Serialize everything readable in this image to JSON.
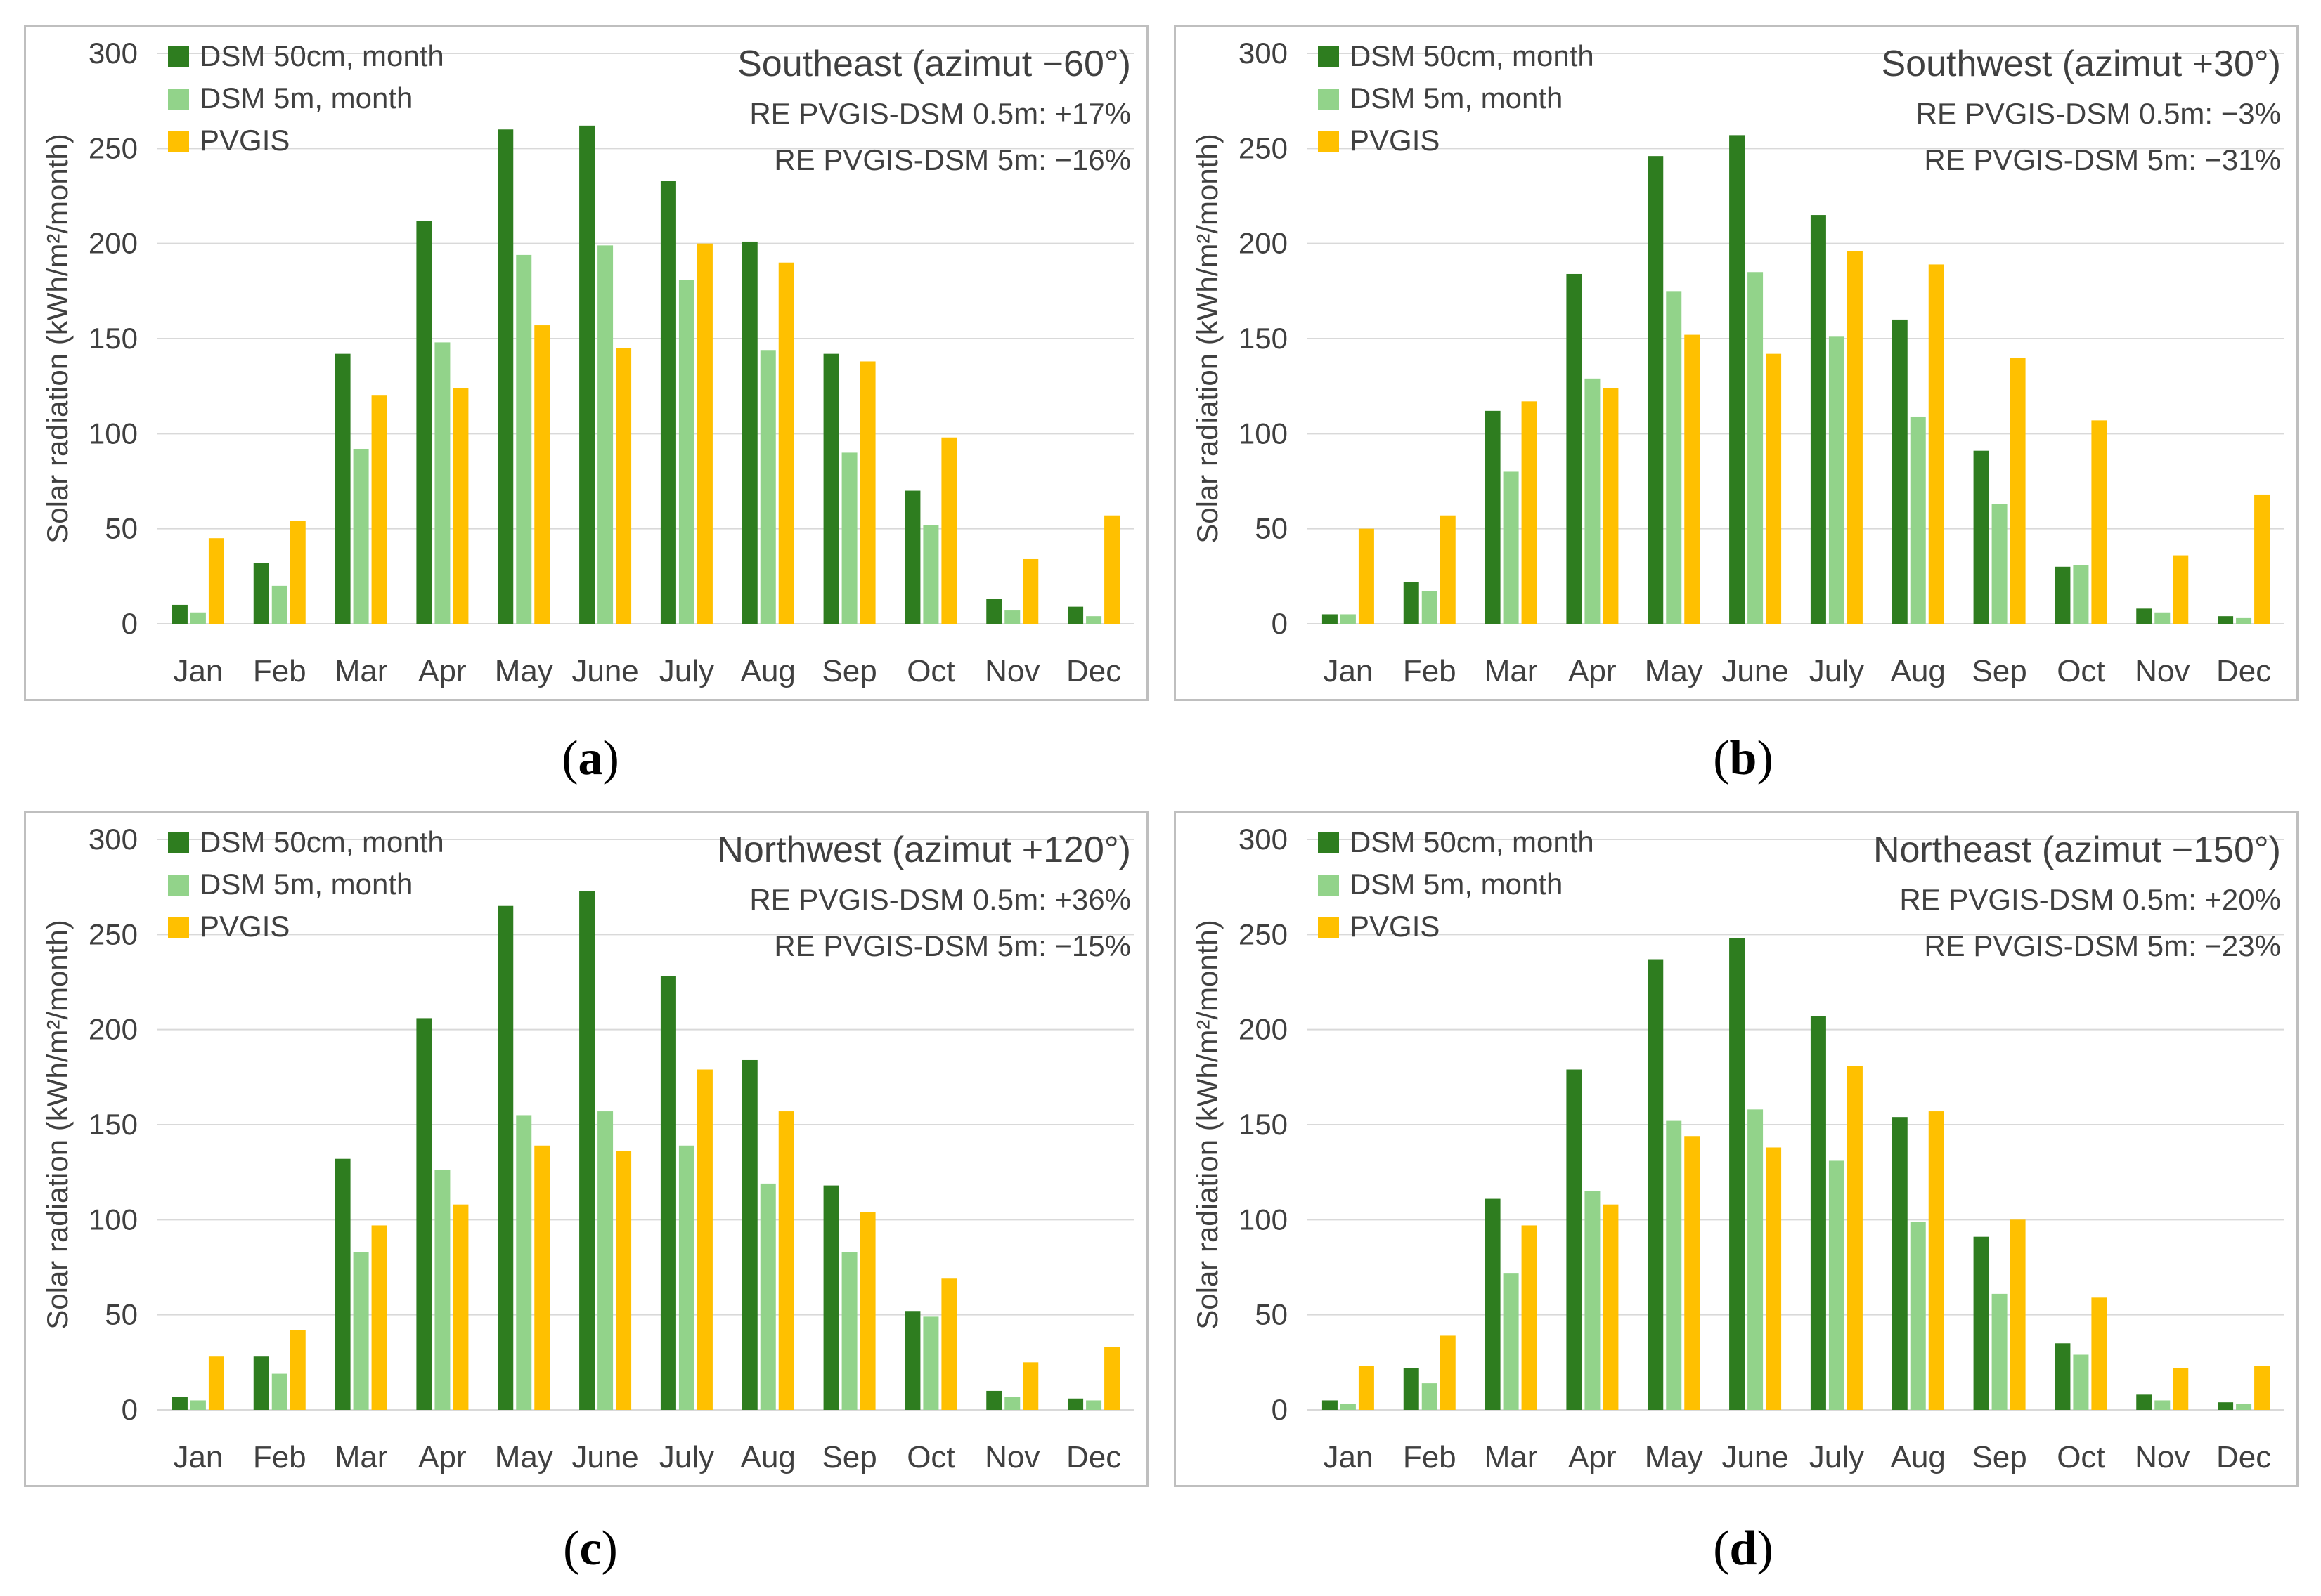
{
  "legend_labels": [
    "DSM 50cm, month",
    "DSM 5m, month",
    "PVGIS"
  ],
  "colors": {
    "dsm50": "#2e7d1f",
    "dsm5": "#92d38a",
    "pvgis": "#ffc000",
    "grid": "#d9d9d9",
    "frame": "#bfbfbf",
    "text": "#404040"
  },
  "chart_data": [
    {
      "type": "bar",
      "panel_label": "a",
      "title": "Southeast (azimut −60°)",
      "annotations": [
        "RE PVGIS-DSM 0.5m: +17%",
        "RE PVGIS-DSM 5m: −16%"
      ],
      "ylabel": "Solar radiation (kWh/m²/month)",
      "ylim": [
        0,
        300
      ],
      "yticks": [
        0,
        50,
        100,
        150,
        200,
        250,
        300
      ],
      "categories": [
        "Jan",
        "Feb",
        "Mar",
        "Apr",
        "May",
        "June",
        "July",
        "Aug",
        "Sep",
        "Oct",
        "Nov",
        "Dec"
      ],
      "series": [
        {
          "name": "DSM 50cm, month",
          "values": [
            10,
            32,
            142,
            212,
            260,
            262,
            233,
            201,
            142,
            70,
            13,
            9
          ]
        },
        {
          "name": "DSM 5m, month",
          "values": [
            6,
            20,
            92,
            148,
            194,
            199,
            181,
            144,
            90,
            52,
            7,
            4
          ]
        },
        {
          "name": "PVGIS",
          "values": [
            45,
            54,
            120,
            124,
            157,
            145,
            200,
            190,
            138,
            98,
            34,
            57
          ]
        }
      ]
    },
    {
      "type": "bar",
      "panel_label": "b",
      "title": "Southwest (azimut +30°)",
      "annotations": [
        "RE PVGIS-DSM 0.5m: −3%",
        "RE PVGIS-DSM 5m: −31%"
      ],
      "ylabel": "Solar radiation (kWh/m²/month)",
      "ylim": [
        0,
        300
      ],
      "yticks": [
        0,
        50,
        100,
        150,
        200,
        250,
        300
      ],
      "categories": [
        "Jan",
        "Feb",
        "Mar",
        "Apr",
        "May",
        "June",
        "July",
        "Aug",
        "Sep",
        "Oct",
        "Nov",
        "Dec"
      ],
      "series": [
        {
          "name": "DSM 50cm, month",
          "values": [
            5,
            22,
            112,
            184,
            246,
            257,
            215,
            160,
            91,
            30,
            8,
            4
          ]
        },
        {
          "name": "DSM 5m, month",
          "values": [
            5,
            17,
            80,
            129,
            175,
            185,
            151,
            109,
            63,
            31,
            6,
            3
          ]
        },
        {
          "name": "PVGIS",
          "values": [
            50,
            57,
            117,
            124,
            152,
            142,
            196,
            189,
            140,
            107,
            36,
            68
          ]
        }
      ]
    },
    {
      "type": "bar",
      "panel_label": "c",
      "title": "Northwest (azimut +120°)",
      "annotations": [
        "RE PVGIS-DSM 0.5m: +36%",
        "RE PVGIS-DSM 5m: −15%"
      ],
      "ylabel": "Solar radiation (kWh/m²/month)",
      "ylim": [
        0,
        300
      ],
      "yticks": [
        0,
        50,
        100,
        150,
        200,
        250,
        300
      ],
      "categories": [
        "Jan",
        "Feb",
        "Mar",
        "Apr",
        "May",
        "June",
        "July",
        "Aug",
        "Sep",
        "Oct",
        "Nov",
        "Dec"
      ],
      "series": [
        {
          "name": "DSM 50cm, month",
          "values": [
            7,
            28,
            132,
            206,
            265,
            273,
            228,
            184,
            118,
            52,
            10,
            6
          ]
        },
        {
          "name": "DSM 5m, month",
          "values": [
            5,
            19,
            83,
            126,
            155,
            157,
            139,
            119,
            83,
            49,
            7,
            5
          ]
        },
        {
          "name": "PVGIS",
          "values": [
            28,
            42,
            97,
            108,
            139,
            136,
            179,
            157,
            104,
            69,
            25,
            33
          ]
        }
      ]
    },
    {
      "type": "bar",
      "panel_label": "d",
      "title": "Northeast (azimut −150°)",
      "annotations": [
        "RE PVGIS-DSM 0.5m: +20%",
        "RE PVGIS-DSM 5m: −23%"
      ],
      "ylabel": "Solar radiation (kWh/m²/month)",
      "ylim": [
        0,
        300
      ],
      "yticks": [
        0,
        50,
        100,
        150,
        200,
        250,
        300
      ],
      "categories": [
        "Jan",
        "Feb",
        "Mar",
        "Apr",
        "May",
        "June",
        "July",
        "Aug",
        "Sep",
        "Oct",
        "Nov",
        "Dec"
      ],
      "series": [
        {
          "name": "DSM 50cm, month",
          "values": [
            5,
            22,
            111,
            179,
            237,
            248,
            207,
            154,
            91,
            35,
            8,
            4
          ]
        },
        {
          "name": "DSM 5m, month",
          "values": [
            3,
            14,
            72,
            115,
            152,
            158,
            131,
            99,
            61,
            29,
            5,
            3
          ]
        },
        {
          "name": "PVGIS",
          "values": [
            23,
            39,
            97,
            108,
            144,
            138,
            181,
            157,
            100,
            59,
            22,
            23
          ]
        }
      ]
    }
  ]
}
